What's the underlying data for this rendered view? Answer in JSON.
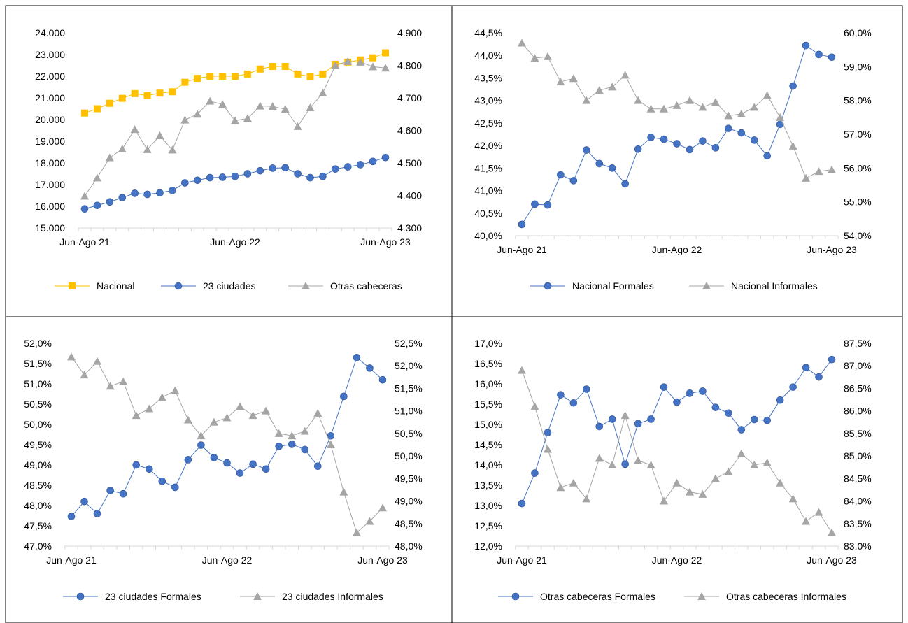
{
  "style": {
    "colors": {
      "nacional": "#FFC000",
      "formales": "#4472C4",
      "informales": "#A5A5A5",
      "axis_text": "#000000",
      "border": "#000000",
      "tick": "#D9D9D9"
    }
  },
  "chart_data": [
    {
      "type": "line",
      "x_tick_labels": [
        "Jun-Ago 21",
        "Jun-Ago 22",
        "Jun-Ago 23"
      ],
      "n_points": 25,
      "grid": false,
      "legend": "bottom",
      "y_left": {
        "ylim": [
          15000,
          24000
        ],
        "ticks": [
          15000,
          16000,
          17000,
          18000,
          19000,
          20000,
          21000,
          22000,
          23000,
          24000
        ],
        "tick_labels": [
          "15.000",
          "16.000",
          "17.000",
          "18.000",
          "19.000",
          "20.000",
          "21.000",
          "22.000",
          "23.000",
          "24.000"
        ]
      },
      "y_right": {
        "ylim": [
          4300,
          4900
        ],
        "ticks": [
          4300,
          4400,
          4500,
          4600,
          4700,
          4800,
          4900
        ],
        "tick_labels": [
          "4.300",
          "4.400",
          "4.500",
          "4.600",
          "4.700",
          "4.800",
          "4.900"
        ]
      },
      "series": [
        {
          "name": "Nacional",
          "axis": "left",
          "color": "#FFC000",
          "marker": "square",
          "values": [
            20300,
            20500,
            20750,
            20980,
            21200,
            21100,
            21220,
            21280,
            21720,
            21900,
            22000,
            22000,
            22000,
            22100,
            22330,
            22450,
            22450,
            22100,
            21980,
            22100,
            22550,
            22650,
            22750,
            22850,
            23080
          ]
        },
        {
          "name": "23 ciudades",
          "axis": "left",
          "color": "#4472C4",
          "marker": "circle",
          "values": [
            15880,
            16040,
            16200,
            16400,
            16600,
            16550,
            16620,
            16730,
            17080,
            17200,
            17320,
            17340,
            17380,
            17500,
            17640,
            17760,
            17780,
            17500,
            17320,
            17380,
            17720,
            17820,
            17920,
            18070,
            18250
          ]
        },
        {
          "name": "Otras cabeceras",
          "axis": "right",
          "color": "#A5A5A5",
          "marker": "triangle",
          "values": [
            4398,
            4454,
            4516,
            4543,
            4603,
            4541,
            4584,
            4540,
            4632,
            4650,
            4690,
            4680,
            4630,
            4637,
            4675,
            4674,
            4665,
            4612,
            4670,
            4715,
            4800,
            4812,
            4810,
            4796,
            4792
          ]
        }
      ]
    },
    {
      "type": "line",
      "x_tick_labels": [
        "Jun-Ago 21",
        "Jun-Ago 22",
        "Jun-Ago 23"
      ],
      "n_points": 25,
      "grid": false,
      "legend": "bottom",
      "y_left": {
        "ylim": [
          40.0,
          44.5
        ],
        "ticks": [
          40.0,
          40.5,
          41.0,
          41.5,
          42.0,
          42.5,
          43.0,
          43.5,
          44.0,
          44.5
        ],
        "tick_labels": [
          "40,0%",
          "40,5%",
          "41,0%",
          "41,5%",
          "42,0%",
          "42,5%",
          "43,0%",
          "43,5%",
          "44,0%",
          "44,5%"
        ]
      },
      "y_right": {
        "ylim": [
          54.0,
          60.0
        ],
        "ticks": [
          54.0,
          55.0,
          56.0,
          57.0,
          58.0,
          59.0,
          60.0
        ],
        "tick_labels": [
          "54,0%",
          "55,0%",
          "56,0%",
          "57,0%",
          "58,0%",
          "59,0%",
          "60,0%"
        ]
      },
      "series": [
        {
          "name": "Nacional Formales",
          "axis": "left",
          "color": "#4472C4",
          "marker": "circle",
          "values": [
            40.25,
            40.7,
            40.68,
            41.35,
            41.22,
            41.9,
            41.6,
            41.5,
            41.15,
            41.92,
            42.18,
            42.14,
            42.04,
            41.91,
            42.1,
            41.95,
            42.38,
            42.28,
            42.12,
            41.77,
            42.47,
            43.32,
            44.22,
            44.02,
            43.96
          ]
        },
        {
          "name": "Nacional Informales",
          "axis": "right",
          "color": "#A5A5A5",
          "marker": "triangle",
          "values": [
            59.7,
            59.25,
            59.3,
            58.55,
            58.65,
            58.0,
            58.3,
            58.4,
            58.75,
            58.0,
            57.75,
            57.75,
            57.85,
            58.0,
            57.8,
            57.95,
            57.55,
            57.6,
            57.8,
            58.15,
            57.5,
            56.65,
            55.7,
            55.9,
            55.95
          ]
        }
      ]
    },
    {
      "type": "line",
      "x_tick_labels": [
        "Jun-Ago 21",
        "Jun-Ago 22",
        "Jun-Ago 23"
      ],
      "n_points": 25,
      "grid": false,
      "legend": "bottom",
      "y_left": {
        "ylim": [
          47.0,
          52.0
        ],
        "ticks": [
          47.0,
          47.5,
          48.0,
          48.5,
          49.0,
          49.5,
          50.0,
          50.5,
          51.0,
          51.5,
          52.0
        ],
        "tick_labels": [
          "47,0%",
          "47,5%",
          "48,0%",
          "48,5%",
          "49,0%",
          "49,5%",
          "50,0%",
          "50,5%",
          "51,0%",
          "51,5%",
          "52,0%"
        ]
      },
      "y_right": {
        "ylim": [
          48.0,
          52.5
        ],
        "ticks": [
          48.0,
          48.5,
          49.0,
          49.5,
          50.0,
          50.5,
          51.0,
          51.5,
          52.0,
          52.5
        ],
        "tick_labels": [
          "48,0%",
          "48,5%",
          "49,0%",
          "49,5%",
          "50,0%",
          "50,5%",
          "51,0%",
          "51,5%",
          "52,0%",
          "52,5%"
        ]
      },
      "series": [
        {
          "name": "23 ciudades Formales",
          "axis": "left",
          "color": "#4472C4",
          "marker": "circle",
          "values": [
            47.73,
            48.1,
            47.8,
            48.37,
            48.29,
            49.0,
            48.9,
            48.6,
            48.45,
            49.13,
            49.49,
            49.18,
            49.05,
            48.8,
            49.02,
            48.9,
            49.46,
            49.51,
            49.38,
            48.97,
            49.72,
            50.69,
            51.65,
            51.39,
            51.1
          ]
        },
        {
          "name": "23 ciudades Informales",
          "axis": "right",
          "color": "#A5A5A5",
          "marker": "triangle",
          "values": [
            52.2,
            51.8,
            52.1,
            51.55,
            51.65,
            50.9,
            51.05,
            51.3,
            51.45,
            50.8,
            50.45,
            50.75,
            50.85,
            51.1,
            50.9,
            51.0,
            50.5,
            50.45,
            50.55,
            50.95,
            50.25,
            49.2,
            48.3,
            48.55,
            48.85
          ]
        }
      ]
    },
    {
      "type": "line",
      "x_tick_labels": [
        "Jun-Ago 21",
        "Jun-Ago 22",
        "Jun-Ago 23"
      ],
      "n_points": 25,
      "grid": false,
      "legend": "bottom",
      "y_left": {
        "ylim": [
          12.0,
          17.0
        ],
        "ticks": [
          12.0,
          12.5,
          13.0,
          13.5,
          14.0,
          14.5,
          15.0,
          15.5,
          16.0,
          16.5,
          17.0
        ],
        "tick_labels": [
          "12,0%",
          "12,5%",
          "13,0%",
          "13,5%",
          "14,0%",
          "14,5%",
          "15,0%",
          "15,5%",
          "16,0%",
          "16,5%",
          "17,0%"
        ]
      },
      "y_right": {
        "ylim": [
          83.0,
          87.5
        ],
        "ticks": [
          83.0,
          83.5,
          84.0,
          84.5,
          85.0,
          85.5,
          86.0,
          86.5,
          87.0,
          87.5
        ],
        "tick_labels": [
          "83,0%",
          "83,5%",
          "84,0%",
          "84,5%",
          "85,0%",
          "85,5%",
          "86,0%",
          "86,5%",
          "87,0%",
          "87,5%"
        ]
      },
      "series": [
        {
          "name": "Otras cabeceras Formales",
          "axis": "left",
          "color": "#4472C4",
          "marker": "circle",
          "values": [
            13.05,
            13.8,
            14.8,
            15.73,
            15.53,
            15.87,
            14.95,
            15.13,
            14.02,
            15.02,
            15.13,
            15.92,
            15.55,
            15.77,
            15.82,
            15.42,
            15.28,
            14.87,
            15.12,
            15.1,
            15.6,
            15.92,
            16.4,
            16.17,
            16.6
          ]
        },
        {
          "name": "Otras cabeceras Informales",
          "axis": "right",
          "color": "#A5A5A5",
          "marker": "triangle",
          "values": [
            86.9,
            86.1,
            85.15,
            84.3,
            84.4,
            84.05,
            84.95,
            84.8,
            85.9,
            84.9,
            84.8,
            84.0,
            84.4,
            84.2,
            84.15,
            84.5,
            84.65,
            85.05,
            84.8,
            84.85,
            84.4,
            84.05,
            83.55,
            83.75,
            83.3
          ]
        }
      ]
    }
  ]
}
